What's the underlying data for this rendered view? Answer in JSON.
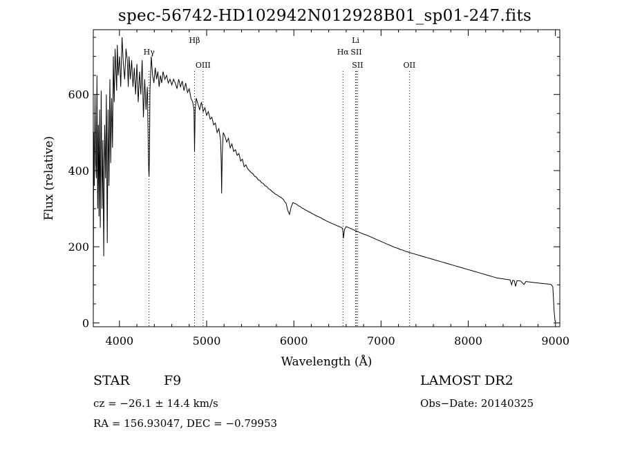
{
  "title": "spec-56742-HD102942N012928B01_sp01-247.fits",
  "info": {
    "object_type": "STAR",
    "spectral_class": "F9",
    "survey": "LAMOST DR2",
    "cz": "cz = −26.1 ± 14.4 km/s",
    "obs_date": "Obs−Date: 20140325",
    "radec": "RA = 156.93047, DEC =  −0.79953"
  },
  "chart_data": {
    "type": "line",
    "title": "spec-56742-HD102942N012928B01_sp01-247.fits",
    "xlabel": "Wavelength (Å)",
    "ylabel": "Flux (relative)",
    "xlim": [
      3700,
      9050
    ],
    "ylim": [
      -10,
      770
    ],
    "xticks": [
      4000,
      5000,
      6000,
      7000,
      8000,
      9000
    ],
    "yticks": [
      0,
      200,
      400,
      600
    ],
    "grid": false,
    "lines": [
      {
        "name": "Hγ",
        "x": 4340,
        "color": "#000000",
        "row": 1
      },
      {
        "name": "Hβ",
        "x": 4861,
        "color": "#000000",
        "row": 0
      },
      {
        "name": "OIII",
        "x": 4959,
        "color": "#000000",
        "row": 2
      },
      {
        "name": "Hα",
        "x": 6563,
        "color": "#000000",
        "row": 1
      },
      {
        "name": "Li",
        "x": 6708,
        "color": "#000000",
        "row": 0
      },
      {
        "name": "SII",
        "x": 6716,
        "color": "#000000",
        "row": 1
      },
      {
        "name": "SII",
        "x": 6731,
        "color": "#000000",
        "row": 2
      },
      {
        "name": "OII",
        "x": 7325,
        "color": "#000000",
        "row": 2
      }
    ],
    "series": [
      {
        "x": [
          3700,
          3705,
          3712,
          3720,
          3728,
          3735,
          3742,
          3750,
          3758,
          3765,
          3772,
          3780,
          3790,
          3800,
          3810,
          3820,
          3830,
          3840,
          3850,
          3860,
          3870,
          3880,
          3890,
          3900,
          3910,
          3920,
          3930,
          3934,
          3940,
          3950,
          3960,
          3968,
          3975,
          3985,
          4000,
          4015,
          4030,
          4045,
          4060,
          4075,
          4090,
          4101,
          4110,
          4125,
          4140,
          4155,
          4170,
          4185,
          4200,
          4215,
          4230,
          4245,
          4260,
          4275,
          4290,
          4305,
          4320,
          4330,
          4336,
          4340,
          4345,
          4350,
          4365,
          4380,
          4395,
          4410,
          4425,
          4440,
          4455,
          4470,
          4485,
          4500,
          4520,
          4540,
          4560,
          4580,
          4600,
          4620,
          4640,
          4660,
          4680,
          4700,
          4720,
          4740,
          4760,
          4780,
          4800,
          4820,
          4840,
          4855,
          4861,
          4868,
          4880,
          4900,
          4920,
          4940,
          4960,
          4980,
          5000,
          5020,
          5040,
          5060,
          5080,
          5100,
          5120,
          5140,
          5160,
          5167,
          5172,
          5178,
          5190,
          5210,
          5230,
          5250,
          5270,
          5290,
          5310,
          5330,
          5350,
          5370,
          5390,
          5410,
          5430,
          5450,
          5470,
          5490,
          5510,
          5530,
          5550,
          5570,
          5590,
          5610,
          5630,
          5650,
          5670,
          5690,
          5710,
          5730,
          5750,
          5770,
          5790,
          5810,
          5830,
          5850,
          5870,
          5885,
          5890,
          5895,
          5910,
          5930,
          5950,
          5970,
          5990,
          6010,
          6030,
          6050,
          6070,
          6090,
          6110,
          6130,
          6150,
          6170,
          6190,
          6210,
          6230,
          6250,
          6270,
          6290,
          6310,
          6330,
          6350,
          6370,
          6390,
          6410,
          6430,
          6450,
          6470,
          6490,
          6510,
          6530,
          6550,
          6558,
          6563,
          6568,
          6580,
          6600,
          6620,
          6640,
          6660,
          6680,
          6700,
          6720,
          6740,
          6760,
          6780,
          6800,
          6830,
          6860,
          6890,
          6920,
          6950,
          6980,
          7010,
          7040,
          7070,
          7100,
          7130,
          7160,
          7190,
          7220,
          7250,
          7280,
          7310,
          7340,
          7370,
          7400,
          7430,
          7460,
          7490,
          7520,
          7550,
          7580,
          7610,
          7640,
          7670,
          7700,
          7730,
          7760,
          7790,
          7820,
          7850,
          7880,
          7910,
          7940,
          7970,
          8000,
          8030,
          8060,
          8090,
          8120,
          8150,
          8180,
          8210,
          8240,
          8270,
          8300,
          8330,
          8360,
          8390,
          8420,
          8450,
          8480,
          8498,
          8510,
          8530,
          8542,
          8560,
          8600,
          8640,
          8662,
          8680,
          8720,
          8760,
          8800,
          8840,
          8880,
          8920,
          8950,
          8970,
          8985,
          8995,
          9000
        ],
        "y": [
          10,
          500,
          360,
          600,
          420,
          380,
          650,
          300,
          520,
          280,
          560,
          250,
          610,
          300,
          480,
          175,
          520,
          380,
          600,
          210,
          560,
          360,
          640,
          420,
          590,
          460,
          700,
          640,
          580,
          720,
          660,
          610,
          730,
          650,
          700,
          620,
          750,
          680,
          640,
          720,
          690,
          620,
          700,
          640,
          690,
          620,
          670,
          600,
          680,
          580,
          660,
          600,
          690,
          540,
          640,
          560,
          620,
          470,
          400,
          385,
          460,
          610,
          700,
          650,
          630,
          670,
          640,
          660,
          620,
          650,
          630,
          660,
          640,
          650,
          630,
          640,
          625,
          640,
          630,
          615,
          640,
          620,
          635,
          610,
          630,
          605,
          615,
          590,
          580,
          560,
          450,
          560,
          590,
          575,
          560,
          580,
          555,
          565,
          545,
          555,
          535,
          540,
          520,
          525,
          500,
          510,
          480,
          420,
          340,
          440,
          500,
          490,
          475,
          485,
          460,
          470,
          450,
          455,
          440,
          445,
          425,
          430,
          410,
          415,
          405,
          400,
          395,
          392,
          385,
          383,
          376,
          374,
          368,
          366,
          360,
          358,
          352,
          350,
          345,
          342,
          338,
          336,
          332,
          330,
          326,
          323,
          320,
          318,
          315,
          295,
          285,
          305,
          316,
          314,
          312,
          308,
          306,
          302,
          300,
          297,
          295,
          292,
          290,
          287,
          285,
          282,
          280,
          278,
          276,
          273,
          271,
          268,
          266,
          264,
          262,
          260,
          258,
          256,
          254,
          252,
          250,
          248,
          240,
          222,
          245,
          253,
          251,
          249,
          247,
          245,
          243,
          241,
          239,
          237,
          235,
          233,
          231,
          228,
          225,
          222,
          219,
          216,
          213,
          210,
          207,
          204,
          201,
          198,
          196,
          193,
          191,
          188,
          186,
          184,
          182,
          180,
          178,
          176,
          174,
          172,
          170,
          168,
          166,
          164,
          162,
          160,
          158,
          156,
          154,
          152,
          150,
          148,
          146,
          144,
          142,
          140,
          138,
          136,
          134,
          132,
          130,
          128,
          126,
          124,
          122,
          120,
          118,
          117,
          116,
          115,
          114,
          113,
          100,
          112,
          110,
          96,
          111,
          110,
          101,
          109,
          108,
          107,
          106,
          105,
          104,
          103,
          102,
          101,
          95,
          30,
          5,
          5
        ]
      }
    ]
  }
}
